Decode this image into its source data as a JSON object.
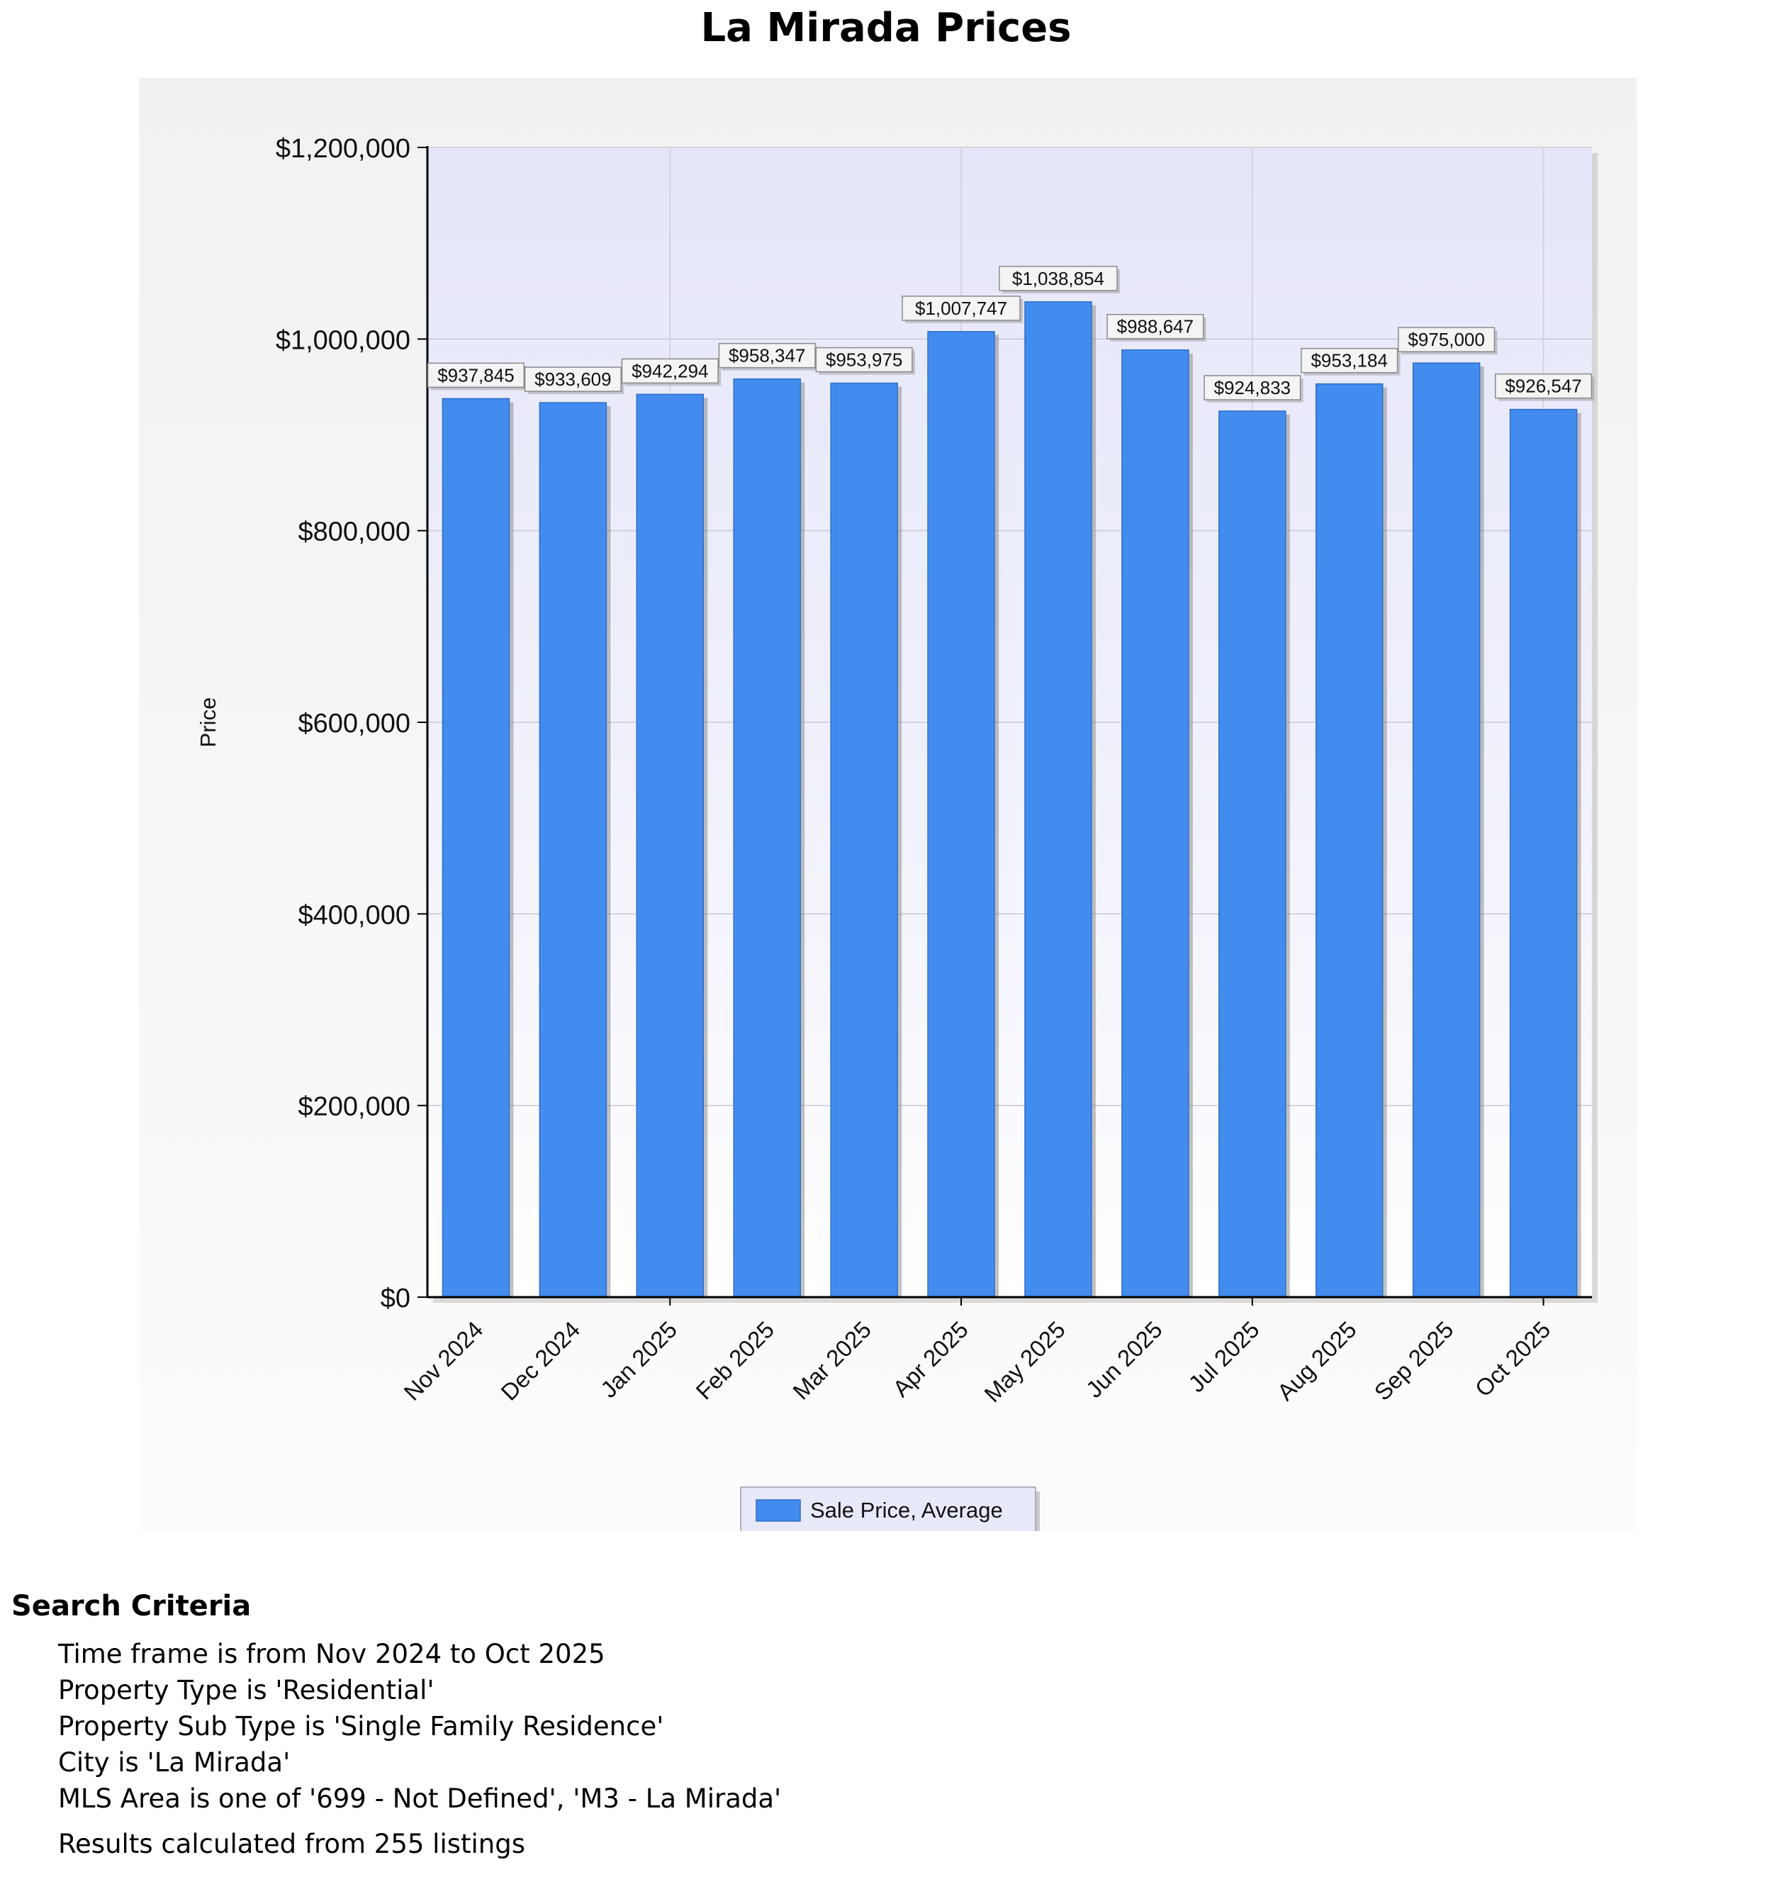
{
  "page": {
    "title": "La Mirada Prices"
  },
  "chart_data": {
    "type": "bar",
    "title": "La Mirada Prices",
    "xlabel": "",
    "ylabel": "Price",
    "ylim": [
      0,
      1200000
    ],
    "yticks": [
      0,
      200000,
      400000,
      600000,
      800000,
      1000000,
      1200000
    ],
    "ytick_labels": [
      "$0",
      "$200,000",
      "$400,000",
      "$600,000",
      "$800,000",
      "$1,000,000",
      "$1,200,000"
    ],
    "categories": [
      "Nov 2024",
      "Dec 2024",
      "Jan 2025",
      "Feb 2025",
      "Mar 2025",
      "Apr 2025",
      "May 2025",
      "Jun 2025",
      "Jul 2025",
      "Aug 2025",
      "Sep 2025",
      "Oct 2025"
    ],
    "series": [
      {
        "name": "Sale Price, Average",
        "color": "#438cef",
        "values": [
          937845,
          933609,
          942294,
          958347,
          953975,
          1007747,
          1038854,
          988647,
          924833,
          953184,
          975000,
          926547
        ],
        "labels": [
          "$937,845",
          "$933,609",
          "$942,294",
          "$958,347",
          "$953,975",
          "$1,007,747",
          "$1,038,854",
          "$988,647",
          "$924,833",
          "$953,184",
          "$975,000",
          "$926,547"
        ]
      }
    ],
    "grid": true,
    "legend_position": "bottom"
  },
  "criteria": {
    "heading": "Search Criteria",
    "items": [
      "Time frame is from Nov 2024 to Oct 2025",
      "Property Type is 'Residential'",
      "Property Sub Type is 'Single Family Residence'",
      "City is 'La Mirada'",
      "MLS Area is one of '699 - Not Defined', 'M3 - La Mirada'"
    ],
    "results": "Results calculated from 255 listings"
  }
}
